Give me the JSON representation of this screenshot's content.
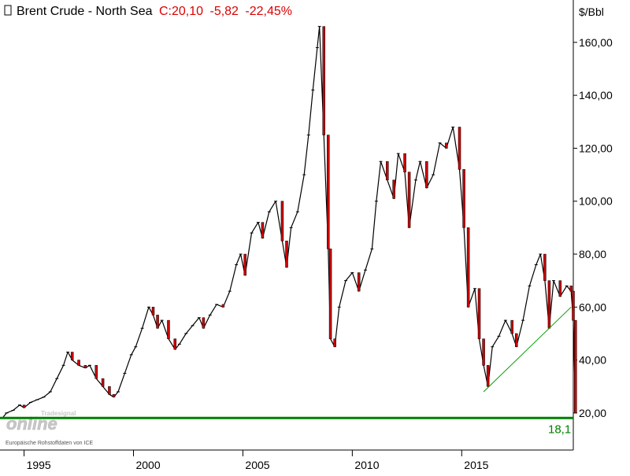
{
  "header": {
    "name": "Brent Crude - North Sea",
    "close_label": "C:20,10",
    "change": "-5,82",
    "change_pct": "-22,45%"
  },
  "colors": {
    "background": "#ffffff",
    "price_line": "#000000",
    "down_body": "#cc0000",
    "support_line": "#008000",
    "trendline": "#00a000",
    "header_change": "#dd0000",
    "watermark": "#c8c8c8"
  },
  "watermark": {
    "brand_small": "Tradesignal",
    "brand_main": "online",
    "source_note": "Europäische Rohstoffdaten von ICE"
  },
  "support_level": {
    "value": 18.1,
    "label": "18,1"
  },
  "trendline": {
    "from": {
      "x": 2016.0,
      "y": 28
    },
    "to": {
      "x": 2020.0,
      "y": 60
    }
  },
  "chart_data": {
    "type": "line",
    "title": "Brent Crude - North Sea",
    "ylabel": "$/Bbl",
    "y_axis_side": "right",
    "xlim": [
      1993.9,
      2020.1
    ],
    "ylim": [
      6,
      176
    ],
    "x_ticks": [
      {
        "value": 1995,
        "label": "1995"
      },
      {
        "value": 2000,
        "label": "2000"
      },
      {
        "value": 2005,
        "label": "2005"
      },
      {
        "value": 2010,
        "label": "2010"
      },
      {
        "value": 2015,
        "label": "2015"
      }
    ],
    "y_ticks": [
      {
        "value": 20,
        "label": "20,00"
      },
      {
        "value": 40,
        "label": "40,00"
      },
      {
        "value": 60,
        "label": "60,00"
      },
      {
        "value": 80,
        "label": "80,00"
      },
      {
        "value": 100,
        "label": "100,00"
      },
      {
        "value": 120,
        "label": "120,00"
      },
      {
        "value": 140,
        "label": "140,00"
      },
      {
        "value": 160,
        "label": "160,00"
      }
    ],
    "grid": false,
    "series": [
      {
        "values": [
          [
            1994.0,
            18
          ],
          [
            1994.2,
            20
          ],
          [
            1994.5,
            21
          ],
          [
            1994.8,
            23
          ],
          [
            1995.0,
            22
          ],
          [
            1995.3,
            24
          ],
          [
            1995.6,
            25
          ],
          [
            1995.9,
            26
          ],
          [
            1996.2,
            28
          ],
          [
            1996.5,
            33
          ],
          [
            1996.8,
            38
          ],
          [
            1997.0,
            43
          ],
          [
            1997.2,
            40
          ],
          [
            1997.5,
            38
          ],
          [
            1997.8,
            37
          ],
          [
            1998.0,
            38
          ],
          [
            1998.3,
            33
          ],
          [
            1998.6,
            30
          ],
          [
            1998.9,
            27
          ],
          [
            1999.1,
            26
          ],
          [
            1999.3,
            28
          ],
          [
            1999.6,
            35
          ],
          [
            1999.9,
            42
          ],
          [
            2000.1,
            45
          ],
          [
            2000.4,
            52
          ],
          [
            2000.7,
            60
          ],
          [
            2000.9,
            57
          ],
          [
            2001.1,
            52
          ],
          [
            2001.3,
            55
          ],
          [
            2001.6,
            48
          ],
          [
            2001.9,
            44
          ],
          [
            2002.1,
            46
          ],
          [
            2002.4,
            50
          ],
          [
            2002.7,
            53
          ],
          [
            2003.0,
            56
          ],
          [
            2003.2,
            52
          ],
          [
            2003.5,
            57
          ],
          [
            2003.8,
            61
          ],
          [
            2004.1,
            60
          ],
          [
            2004.4,
            66
          ],
          [
            2004.7,
            76
          ],
          [
            2004.9,
            80
          ],
          [
            2005.1,
            72
          ],
          [
            2005.4,
            88
          ],
          [
            2005.7,
            92
          ],
          [
            2005.9,
            86
          ],
          [
            2006.2,
            96
          ],
          [
            2006.5,
            100
          ],
          [
            2006.8,
            85
          ],
          [
            2007.0,
            75
          ],
          [
            2007.2,
            90
          ],
          [
            2007.5,
            96
          ],
          [
            2007.8,
            110
          ],
          [
            2008.0,
            125
          ],
          [
            2008.2,
            142
          ],
          [
            2008.4,
            158
          ],
          [
            2008.5,
            166
          ],
          [
            2008.7,
            125
          ],
          [
            2008.9,
            82
          ],
          [
            2009.0,
            48
          ],
          [
            2009.2,
            45
          ],
          [
            2009.4,
            60
          ],
          [
            2009.7,
            70
          ],
          [
            2010.0,
            73
          ],
          [
            2010.3,
            66
          ],
          [
            2010.6,
            74
          ],
          [
            2010.9,
            82
          ],
          [
            2011.1,
            100
          ],
          [
            2011.3,
            115
          ],
          [
            2011.6,
            108
          ],
          [
            2011.9,
            101
          ],
          [
            2012.1,
            118
          ],
          [
            2012.4,
            111
          ],
          [
            2012.6,
            90
          ],
          [
            2012.9,
            108
          ],
          [
            2013.1,
            115
          ],
          [
            2013.4,
            105
          ],
          [
            2013.7,
            110
          ],
          [
            2014.0,
            122
          ],
          [
            2014.3,
            120
          ],
          [
            2014.6,
            128
          ],
          [
            2014.9,
            112
          ],
          [
            2015.1,
            90
          ],
          [
            2015.3,
            60
          ],
          [
            2015.6,
            67
          ],
          [
            2015.8,
            48
          ],
          [
            2016.0,
            38
          ],
          [
            2016.2,
            30
          ],
          [
            2016.4,
            45
          ],
          [
            2016.7,
            49
          ],
          [
            2017.0,
            55
          ],
          [
            2017.3,
            50
          ],
          [
            2017.5,
            45
          ],
          [
            2017.8,
            55
          ],
          [
            2018.1,
            68
          ],
          [
            2018.4,
            76
          ],
          [
            2018.6,
            80
          ],
          [
            2018.8,
            70
          ],
          [
            2019.0,
            52
          ],
          [
            2019.2,
            70
          ],
          [
            2019.5,
            64
          ],
          [
            2019.8,
            68
          ],
          [
            2020.0,
            66
          ],
          [
            2020.1,
            55
          ],
          [
            2020.2,
            20
          ]
        ]
      }
    ]
  }
}
